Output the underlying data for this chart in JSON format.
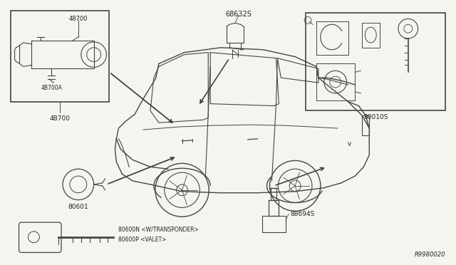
{
  "bg_color": "#f5f5f0",
  "fig_width": 6.4,
  "fig_height": 3.72,
  "dpi": 100,
  "text_color": "#222222",
  "line_color": "#444444",
  "label_48700": "48700",
  "label_48700A": "4B700A",
  "label_48700_bot": "4B700",
  "label_68632S": "68632S",
  "label_80010S": "80010S",
  "label_80601": "80601",
  "label_80600N": "80600N <W/TRANSPONDER>",
  "label_80600P": "80600P <VALET>",
  "label_88694S": "88694S",
  "label_ref": "R9980020"
}
